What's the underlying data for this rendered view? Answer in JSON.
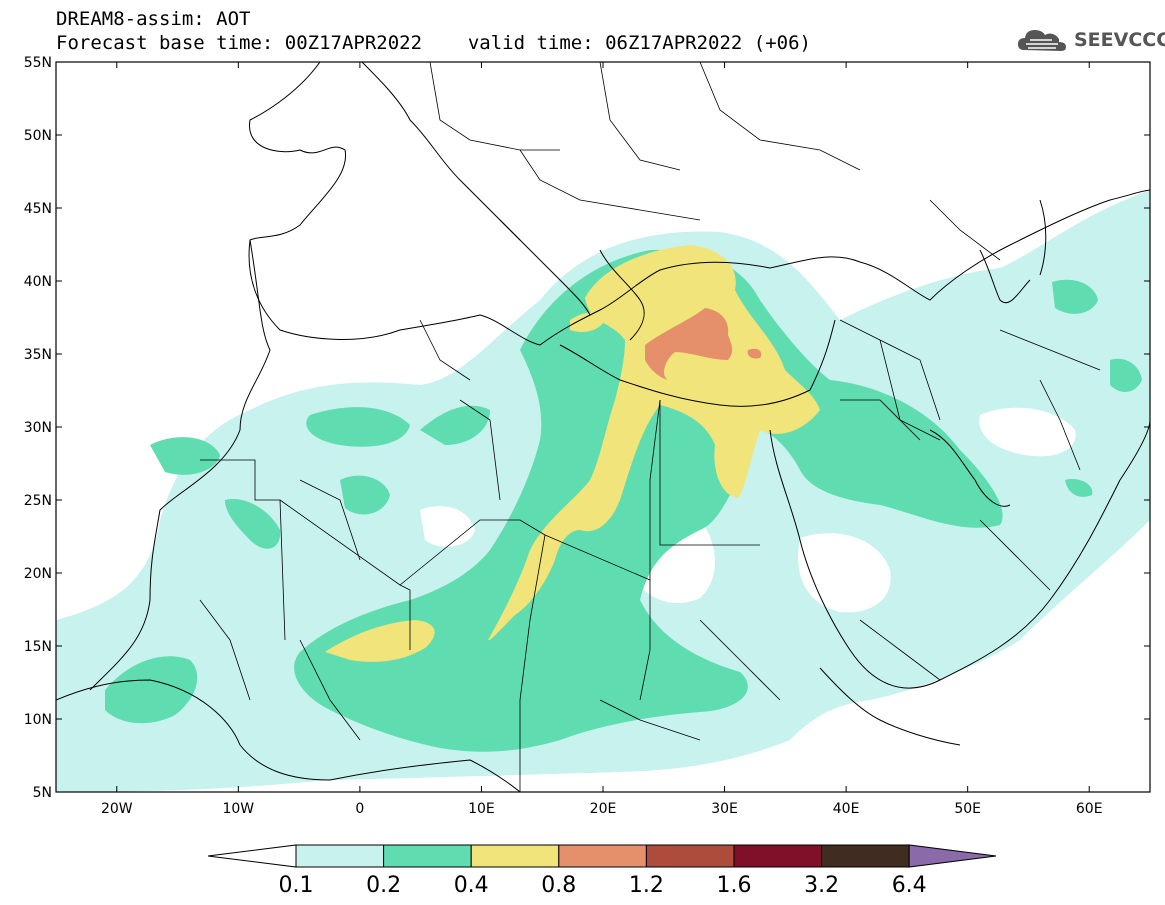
{
  "title": {
    "line1": "DREAM8-assim: AOT",
    "line2_base": "Forecast base time: 00Z17APR2022",
    "line2_valid": "valid time: 06Z17APR2022 (+06)"
  },
  "logo": {
    "text": "SEEVCCC",
    "icon": "cloud-icon"
  },
  "chart_data": {
    "type": "heatmap",
    "variable": "AOT",
    "region": {
      "lon_range": [
        -25,
        65
      ],
      "lat_range": [
        5,
        55
      ]
    },
    "lat_ticks": [
      {
        "value": 55,
        "label": "55N"
      },
      {
        "value": 50,
        "label": "50N"
      },
      {
        "value": 45,
        "label": "45N"
      },
      {
        "value": 40,
        "label": "40N"
      },
      {
        "value": 35,
        "label": "35N"
      },
      {
        "value": 30,
        "label": "30N"
      },
      {
        "value": 25,
        "label": "25N"
      },
      {
        "value": 20,
        "label": "20N"
      },
      {
        "value": 15,
        "label": "15N"
      },
      {
        "value": 10,
        "label": "10N"
      },
      {
        "value": 5,
        "label": "5N"
      }
    ],
    "lon_ticks": [
      {
        "value": -20,
        "label": "20W"
      },
      {
        "value": -10,
        "label": "10W"
      },
      {
        "value": 0,
        "label": "0"
      },
      {
        "value": 10,
        "label": "10E"
      },
      {
        "value": 20,
        "label": "20E"
      },
      {
        "value": 30,
        "label": "30E"
      },
      {
        "value": 40,
        "label": "40E"
      },
      {
        "value": 50,
        "label": "50E"
      },
      {
        "value": 60,
        "label": "60E"
      }
    ],
    "levels": [
      {
        "label": "0.1",
        "color": "#c8f2ee"
      },
      {
        "label": "0.2",
        "color": "#5fdcb0"
      },
      {
        "label": "0.4",
        "color": "#f0e47a"
      },
      {
        "label": "0.8",
        "color": "#e5906a"
      },
      {
        "label": "1.2",
        "color": "#ad4c3c"
      },
      {
        "label": "1.6",
        "color": "#80102a"
      },
      {
        "label": "3.2",
        "color": "#402c20"
      },
      {
        "label": "6.4",
        "color": "#8a6aa8"
      }
    ]
  }
}
